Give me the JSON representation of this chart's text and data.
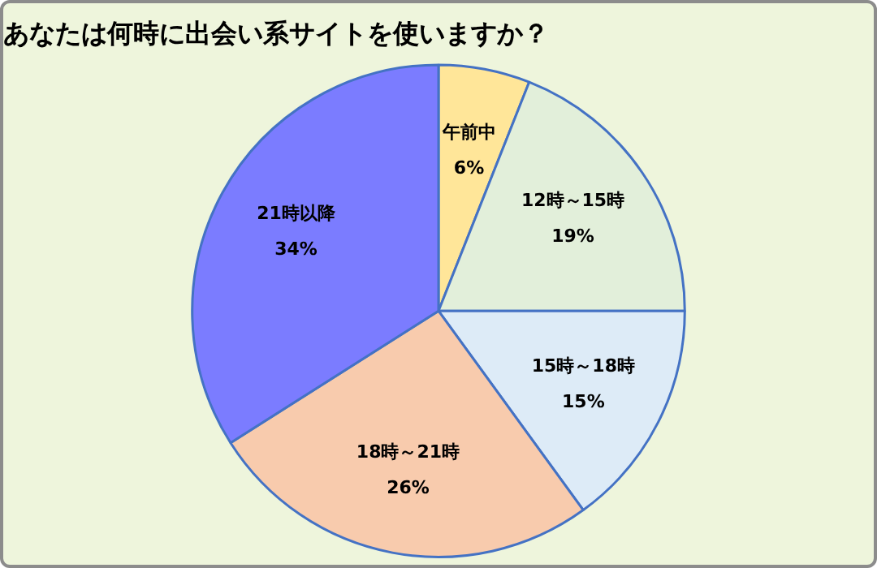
{
  "chart_data": {
    "type": "pie",
    "title": "あなたは何時に出会い系サイトを使いますか？",
    "categories": [
      "午前中",
      "12時～15時",
      "15時～18時",
      "18時～21時",
      "21時以降"
    ],
    "values": [
      6,
      19,
      15,
      26,
      34
    ],
    "colors": [
      "#ffe699",
      "#e2efda",
      "#ddebf7",
      "#f8cbad",
      "#7b7cff"
    ],
    "value_labels": [
      "6%",
      "19%",
      "15%",
      "26%",
      "34%"
    ]
  }
}
